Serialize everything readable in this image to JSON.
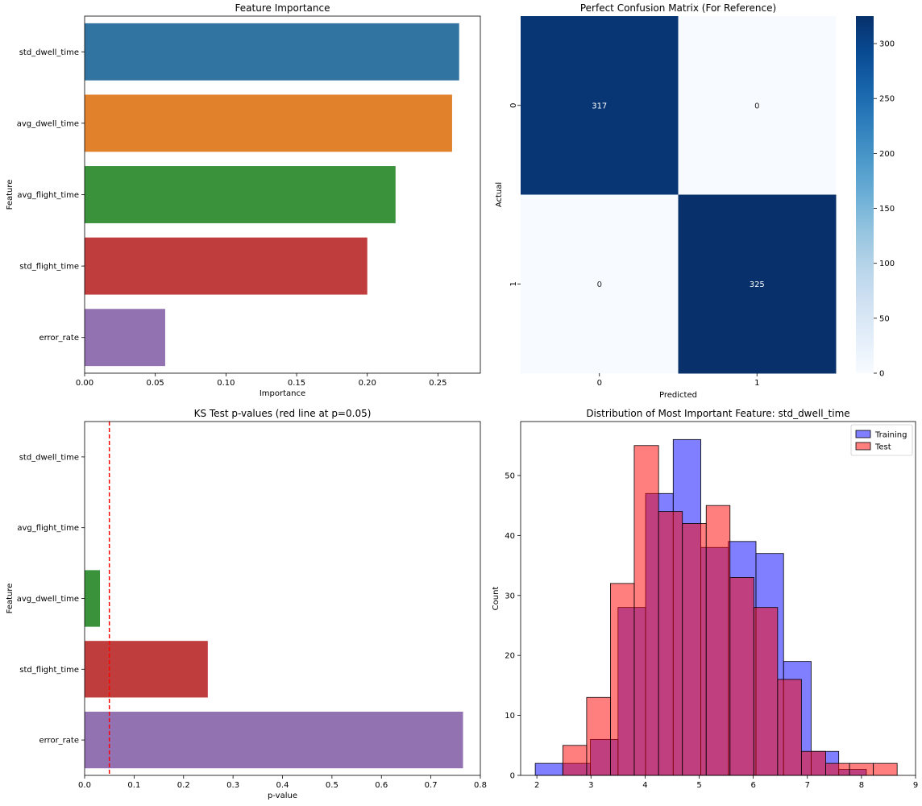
{
  "chart_data": [
    {
      "type": "bar",
      "orientation": "horizontal",
      "title": "Feature Importance",
      "xlabel": "Importance",
      "ylabel": "Feature",
      "categories": [
        "std_dwell_time",
        "avg_dwell_time",
        "avg_flight_time",
        "std_flight_time",
        "error_rate"
      ],
      "values": [
        0.265,
        0.26,
        0.22,
        0.2,
        0.057
      ],
      "colors": [
        "#3274a1",
        "#e1812c",
        "#3a923a",
        "#c03d3e",
        "#9372b2"
      ],
      "xlim": [
        0,
        0.28
      ],
      "xticks": [
        0.0,
        0.05,
        0.1,
        0.15,
        0.2,
        0.25
      ],
      "xtick_labels": [
        "0.00",
        "0.05",
        "0.10",
        "0.15",
        "0.20",
        "0.25"
      ]
    },
    {
      "type": "heatmap",
      "title": "Perfect Confusion Matrix (For Reference)",
      "xlabel": "Predicted",
      "ylabel": "Actual",
      "x_categories": [
        "0",
        "1"
      ],
      "y_categories": [
        "0",
        "1"
      ],
      "values": [
        [
          317,
          0
        ],
        [
          0,
          325
        ]
      ],
      "cell_labels": [
        [
          "317",
          "0"
        ],
        [
          "0",
          "325"
        ]
      ],
      "colormap": "Blues",
      "colorbar_range": [
        0,
        325
      ],
      "colorbar_ticks": [
        0,
        50,
        100,
        150,
        200,
        250,
        300
      ],
      "colorbar_tick_labels": [
        "0",
        "50",
        "100",
        "150",
        "200",
        "250",
        "300"
      ]
    },
    {
      "type": "bar",
      "orientation": "horizontal",
      "title": "KS Test p-values (red line at p=0.05)",
      "xlabel": "p-value",
      "ylabel": "Feature",
      "categories": [
        "std_dwell_time",
        "avg_flight_time",
        "avg_dwell_time",
        "std_flight_time",
        "error_rate"
      ],
      "values": [
        0.0,
        0.0,
        0.031,
        0.249,
        0.765
      ],
      "colors": [
        "#3274a1",
        "#e1812c",
        "#3a923a",
        "#c03d3e",
        "#9372b2"
      ],
      "reference_line": {
        "x": 0.05,
        "color": "#ff0000",
        "style": "dashed"
      },
      "xlim": [
        0,
        0.8
      ],
      "xticks": [
        0.0,
        0.1,
        0.2,
        0.3,
        0.4,
        0.5,
        0.6,
        0.7,
        0.8
      ],
      "xtick_labels": [
        "0.0",
        "0.1",
        "0.2",
        "0.3",
        "0.4",
        "0.5",
        "0.6",
        "0.7",
        "0.8"
      ]
    },
    {
      "type": "histogram",
      "title": "Distribution of Most Important Feature: std_dwell_time",
      "xlabel": "",
      "ylabel": "Count",
      "xlim": [
        1.7,
        9.0
      ],
      "ylim": [
        0,
        59
      ],
      "xticks": [
        2,
        3,
        4,
        5,
        6,
        7,
        8,
        9
      ],
      "xtick_labels": [
        "2",
        "3",
        "4",
        "5",
        "6",
        "7",
        "8",
        "9"
      ],
      "yticks": [
        0,
        10,
        20,
        30,
        40,
        50
      ],
      "ytick_labels": [
        "0",
        "10",
        "20",
        "30",
        "40",
        "50"
      ],
      "legend": {
        "position": "top-right",
        "entries": [
          "Training",
          "Test"
        ]
      },
      "series": [
        {
          "name": "Training",
          "color": "#0000ff",
          "bin_edges": [
            1.97,
            2.48,
            2.99,
            3.5,
            4.01,
            4.52,
            5.03,
            5.54,
            6.05,
            6.56,
            7.07,
            7.58,
            8.09
          ],
          "counts": [
            2,
            2,
            6,
            28,
            47,
            56,
            38,
            39,
            37,
            19,
            4,
            1
          ]
        },
        {
          "name": "Test",
          "color": "#ff0000",
          "bin_edges": [
            2.48,
            2.92,
            3.36,
            3.8,
            4.25,
            4.69,
            5.13,
            5.57,
            6.01,
            6.45,
            6.89,
            7.34,
            7.78,
            8.22,
            8.66
          ],
          "counts": [
            5,
            13,
            32,
            55,
            44,
            42,
            45,
            33,
            28,
            16,
            4,
            2,
            2,
            2
          ]
        }
      ]
    }
  ]
}
